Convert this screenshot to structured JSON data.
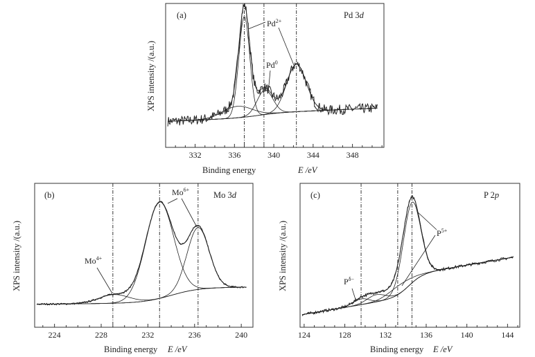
{
  "chart_data": [
    {
      "type": "line",
      "panel_label": "(a)",
      "title": "Pd 3",
      "title_italic": "d",
      "xlabel": "Binding energy",
      "xlabel_unit": "E /eV",
      "ylabel": "XPS intensity /(a.u.)",
      "xlim": [
        329,
        351.2
      ],
      "ylim": [
        0,
        1
      ],
      "xticks": [
        332,
        336,
        340,
        344,
        348
      ],
      "reference_lines": [
        337.0,
        339.0,
        342.3
      ],
      "background": {
        "left": 0.18,
        "right": 0.245,
        "step": 0.03,
        "step_center": 338.5
      },
      "components": [
        {
          "center": 337.0,
          "height": 0.7,
          "sigma": 0.55
        },
        {
          "center": 336.3,
          "height": 0.08,
          "sigma": 1.5
        },
        {
          "center": 339.1,
          "height": 0.17,
          "sigma": 0.8
        },
        {
          "center": 342.3,
          "height": 0.33,
          "sigma": 1.0
        }
      ],
      "annotations": [
        {
          "text": "Pd",
          "sup": "2+"
        },
        {
          "text": "Pd",
          "sup": "0"
        }
      ]
    },
    {
      "type": "line",
      "panel_label": "(b)",
      "title": "Mo 3",
      "title_italic": "d",
      "xlabel": "Binding energy",
      "xlabel_unit": "E /eV",
      "ylabel": "XPS intensity /(a.u.)",
      "xlim": [
        222.3,
        241.0
      ],
      "ylim": [
        0,
        1
      ],
      "xticks": [
        224,
        228,
        232,
        236,
        240
      ],
      "reference_lines": [
        229.0,
        233.0,
        236.3
      ],
      "background": {
        "left": 0.16,
        "right": 0.175,
        "step": 0.105,
        "step_center": 234.0
      },
      "components": [
        {
          "center": 229.1,
          "height": 0.06,
          "sigma": 1.3
        },
        {
          "center": 233.0,
          "height": 0.67,
          "sigma": 1.2
        },
        {
          "center": 236.3,
          "height": 0.43,
          "sigma": 0.95
        }
      ],
      "annotations": [
        {
          "text": "Mo",
          "sup": "6+"
        },
        {
          "text": "Mo",
          "sup": "4+"
        }
      ]
    },
    {
      "type": "line",
      "panel_label": "(c)",
      "title": "P 2",
      "title_italic": "p",
      "xlabel": "Binding energy",
      "xlabel_unit": "E /eV",
      "ylabel": "XPS intensity /(a.u.)",
      "xlim": [
        123.6,
        145.2
      ],
      "ylim": [
        0,
        1
      ],
      "xticks": [
        124,
        128,
        132,
        136,
        140,
        144
      ],
      "reference_lines": [
        129.6,
        133.2,
        134.6
      ],
      "background": {
        "left": 0.085,
        "slope": 0.012,
        "step": 0.15,
        "step_center": 134.3
      },
      "components": [
        {
          "center": 129.6,
          "height": 0.04,
          "sigma": 0.8
        },
        {
          "center": 131.1,
          "height": 0.05,
          "sigma": 0.9
        },
        {
          "center": 133.4,
          "height": 0.06,
          "sigma": 1.2
        },
        {
          "center": 134.6,
          "height": 0.56,
          "sigma": 0.85
        }
      ],
      "annotations": [
        {
          "text": "P",
          "sup": "5+"
        },
        {
          "text": "P",
          "sup": "δ−"
        }
      ]
    }
  ]
}
